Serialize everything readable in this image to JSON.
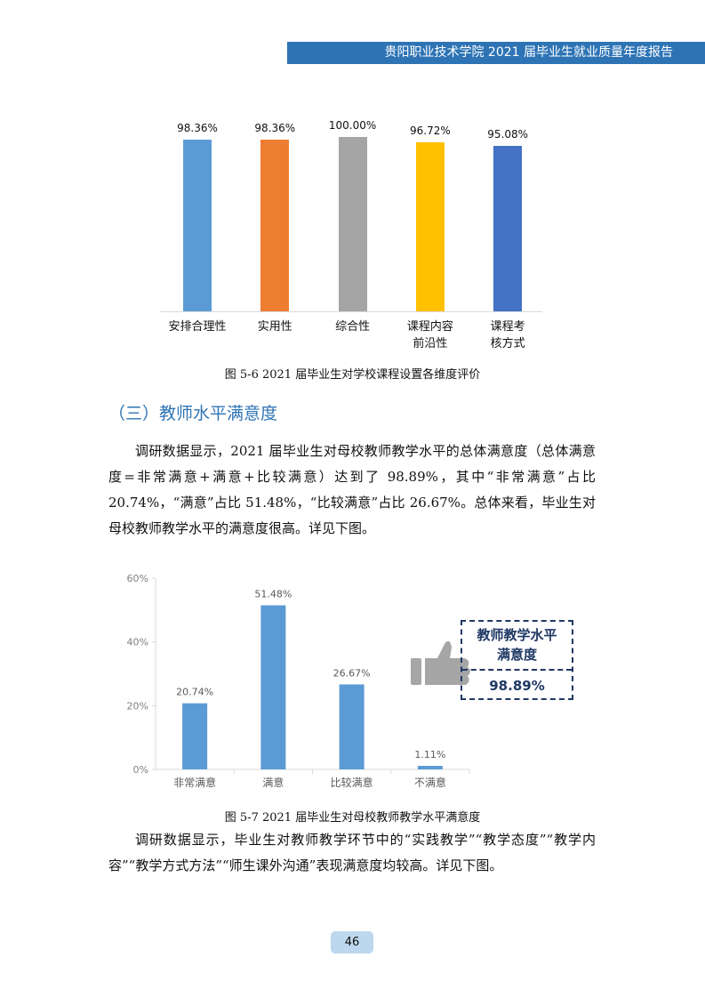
{
  "header": {
    "title": "贵阳职业技术学院 2021 届毕业生就业质量年度报告"
  },
  "chart_data": [
    {
      "type": "bar",
      "categories": [
        "安排合理性",
        "实用性",
        "综合性",
        "课程内容\n前沿性",
        "课程考\n核方式"
      ],
      "values": [
        98.36,
        98.36,
        100,
        96.72,
        95.08
      ],
      "value_labels": [
        "98.36%",
        "98.36%",
        "100.00%",
        "96.72%",
        "95.08%"
      ],
      "colors": [
        "#5b9bd5",
        "#ed7d31",
        "#a5a5a5",
        "#ffc000",
        "#4472c4"
      ],
      "caption": "图 5-6 2021 届毕业生对学校课程设置各维度评价"
    },
    {
      "type": "bar",
      "categories": [
        "非常满意",
        "满意",
        "比较满意",
        "不满意"
      ],
      "values": [
        20.74,
        51.48,
        26.67,
        1.11
      ],
      "value_labels": [
        "20.74%",
        "51.48%",
        "26.67%",
        "1.11%"
      ],
      "color": "#5b9bd5",
      "ylim": [
        0,
        60
      ],
      "yticks": [
        {
          "value": 0,
          "label": "0%"
        },
        {
          "value": 20,
          "label": "20%"
        },
        {
          "value": 40,
          "label": "40%"
        },
        {
          "value": 60,
          "label": "60%"
        }
      ],
      "callout": {
        "label": "教师教学水平\n满意度",
        "value": "98.89%"
      },
      "caption": "图 5-7 2021 届毕业生对母校教师教学水平满意度"
    }
  ],
  "section": {
    "heading": "（三）教师水平满意度"
  },
  "paragraphs": [
    "调研数据显示，2021 届毕业生对母校教师教学水平的总体满意度（总体满意度=非常满意+满意+比较满意）达到了 98.89%，其中“非常满意”占比 20.74%，“满意”占比 51.48%，“比较满意”占比 26.67%。总体来看，毕业生对母校教师教学水平的满意度很高。详见下图。",
    "调研数据显示，毕业生对教师教学环节中的“实践教学”“教学态度”“教学内容”“教学方式方法”“师生课外沟通”表现满意度均较高。详见下图。"
  ],
  "page_number": "46"
}
